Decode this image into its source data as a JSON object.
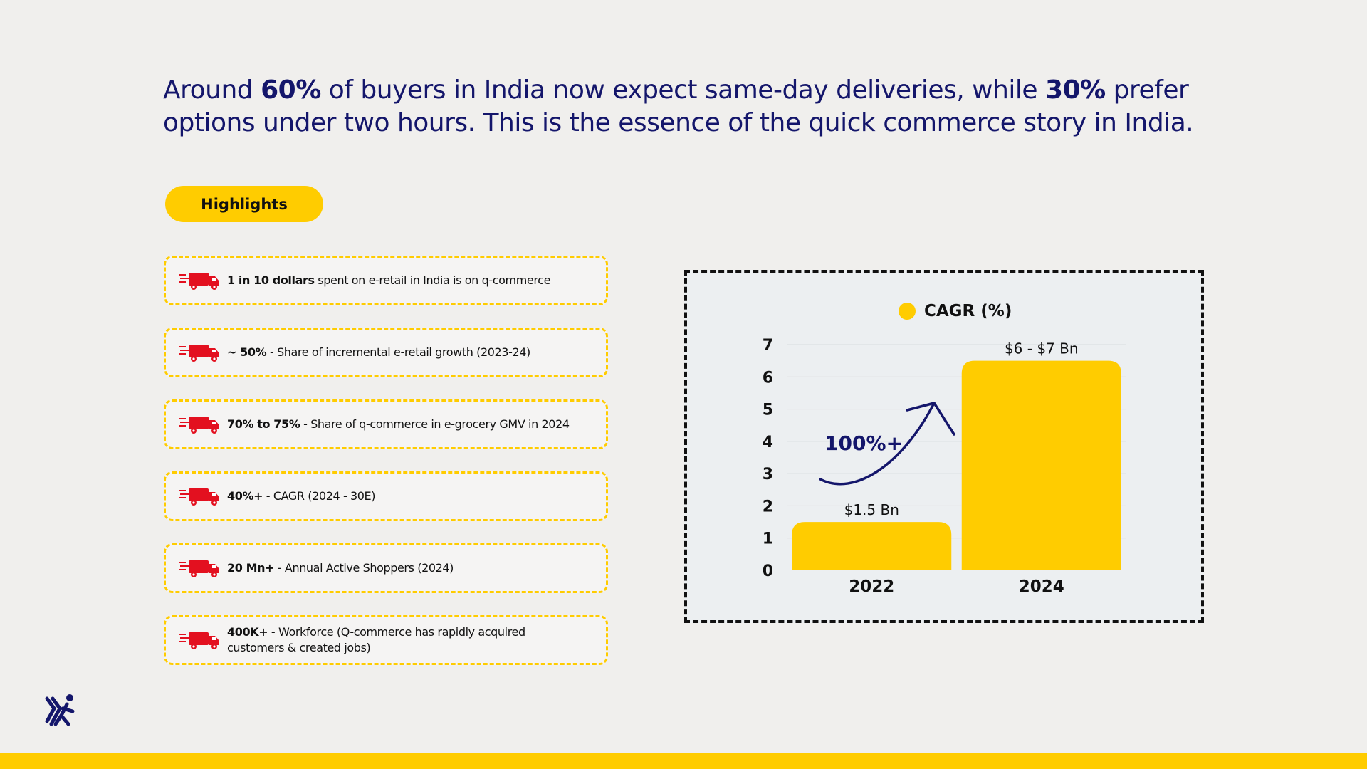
{
  "headline": {
    "p1": "Around ",
    "b1": "60%",
    "p2": " of buyers in India now expect same-day deliveries, while ",
    "b2": "30%",
    "p3": " prefer options under two hours. This is the essence of the quick commerce story in India."
  },
  "highlights_label": "Highlights",
  "highlights": [
    {
      "bold": "1 in 10 dollars",
      "text": " spent on e-retail in India is on q-commerce"
    },
    {
      "bold": "~ 50%",
      "text": " - Share of incremental e-retail growth (2023-24)"
    },
    {
      "bold": "70% to 75%",
      "text": " - Share of q-commerce in e-grocery GMV in 2024"
    },
    {
      "bold": "40%+",
      "text": " - CAGR (2024 - 30E)"
    },
    {
      "bold": "20 Mn+",
      "text": " - Annual Active Shoppers (2024)"
    },
    {
      "bold": "400K+",
      "text": " - Workforce (Q-commerce has rapidly acquired customers & created jobs)"
    }
  ],
  "colors": {
    "accent": "#ffcc00",
    "navy": "#14166b",
    "truck_red": "#e3101f"
  },
  "icons": {
    "truck": "delivery-truck-icon",
    "logo": "running-person-logo-icon"
  },
  "chart_data": {
    "type": "bar",
    "legend": "CAGR (%)",
    "legend_position": "top",
    "categories": [
      "2022",
      "2024"
    ],
    "values": [
      1.5,
      6.5
    ],
    "data_labels": [
      "$1.5 Bn",
      "$6 - $7 Bn"
    ],
    "yticks": [
      "0",
      "1",
      "2",
      "3",
      "4",
      "5",
      "6",
      "7"
    ],
    "ylim": [
      0,
      7
    ],
    "grid": true,
    "annotation": "100%+",
    "bar_color": "#ffcc00"
  }
}
